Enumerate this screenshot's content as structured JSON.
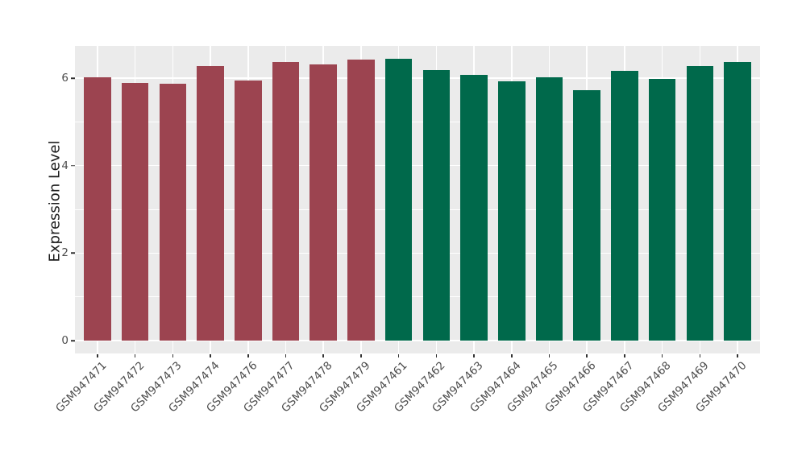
{
  "chart_data": {
    "type": "bar",
    "title": "",
    "xlabel": "",
    "ylabel": "Expression Level",
    "ylim": [
      0,
      6.77
    ],
    "yticks": [
      0,
      2,
      4,
      6
    ],
    "yticks_minor": [
      1,
      3,
      5
    ],
    "grid": "horizontal major and minor white gridlines plus vertical white gridlines at each category center, on grey panel",
    "legend": "none",
    "panel_background": "#EBEBEB",
    "grid_color": "#FFFFFF",
    "tick_color": "#333333",
    "axis_text_color": "#4D4D4D",
    "axis_title_color": "#1A1A1A",
    "bar_groups": [
      {
        "name": "left-group",
        "color": "#9C4450",
        "count": 8
      },
      {
        "name": "right-group",
        "color": "#00694B",
        "count": 10
      }
    ],
    "categories": [
      "GSM947471",
      "GSM947472",
      "GSM947473",
      "GSM947474",
      "GSM947476",
      "GSM947477",
      "GSM947478",
      "GSM947479",
      "GSM947461",
      "GSM947462",
      "GSM947463",
      "GSM947464",
      "GSM947465",
      "GSM947466",
      "GSM947467",
      "GSM947468",
      "GSM947469",
      "GSM947470"
    ],
    "values": [
      6.02,
      5.89,
      5.87,
      6.28,
      5.95,
      6.37,
      6.31,
      6.42,
      6.44,
      6.18,
      6.07,
      5.93,
      6.02,
      5.72,
      6.16,
      5.98,
      6.27,
      6.36
    ],
    "bar_colors": [
      "#9C4450",
      "#9C4450",
      "#9C4450",
      "#9C4450",
      "#9C4450",
      "#9C4450",
      "#9C4450",
      "#9C4450",
      "#00694B",
      "#00694B",
      "#00694B",
      "#00694B",
      "#00694B",
      "#00694B",
      "#00694B",
      "#00694B",
      "#00694B",
      "#00694B"
    ]
  }
}
